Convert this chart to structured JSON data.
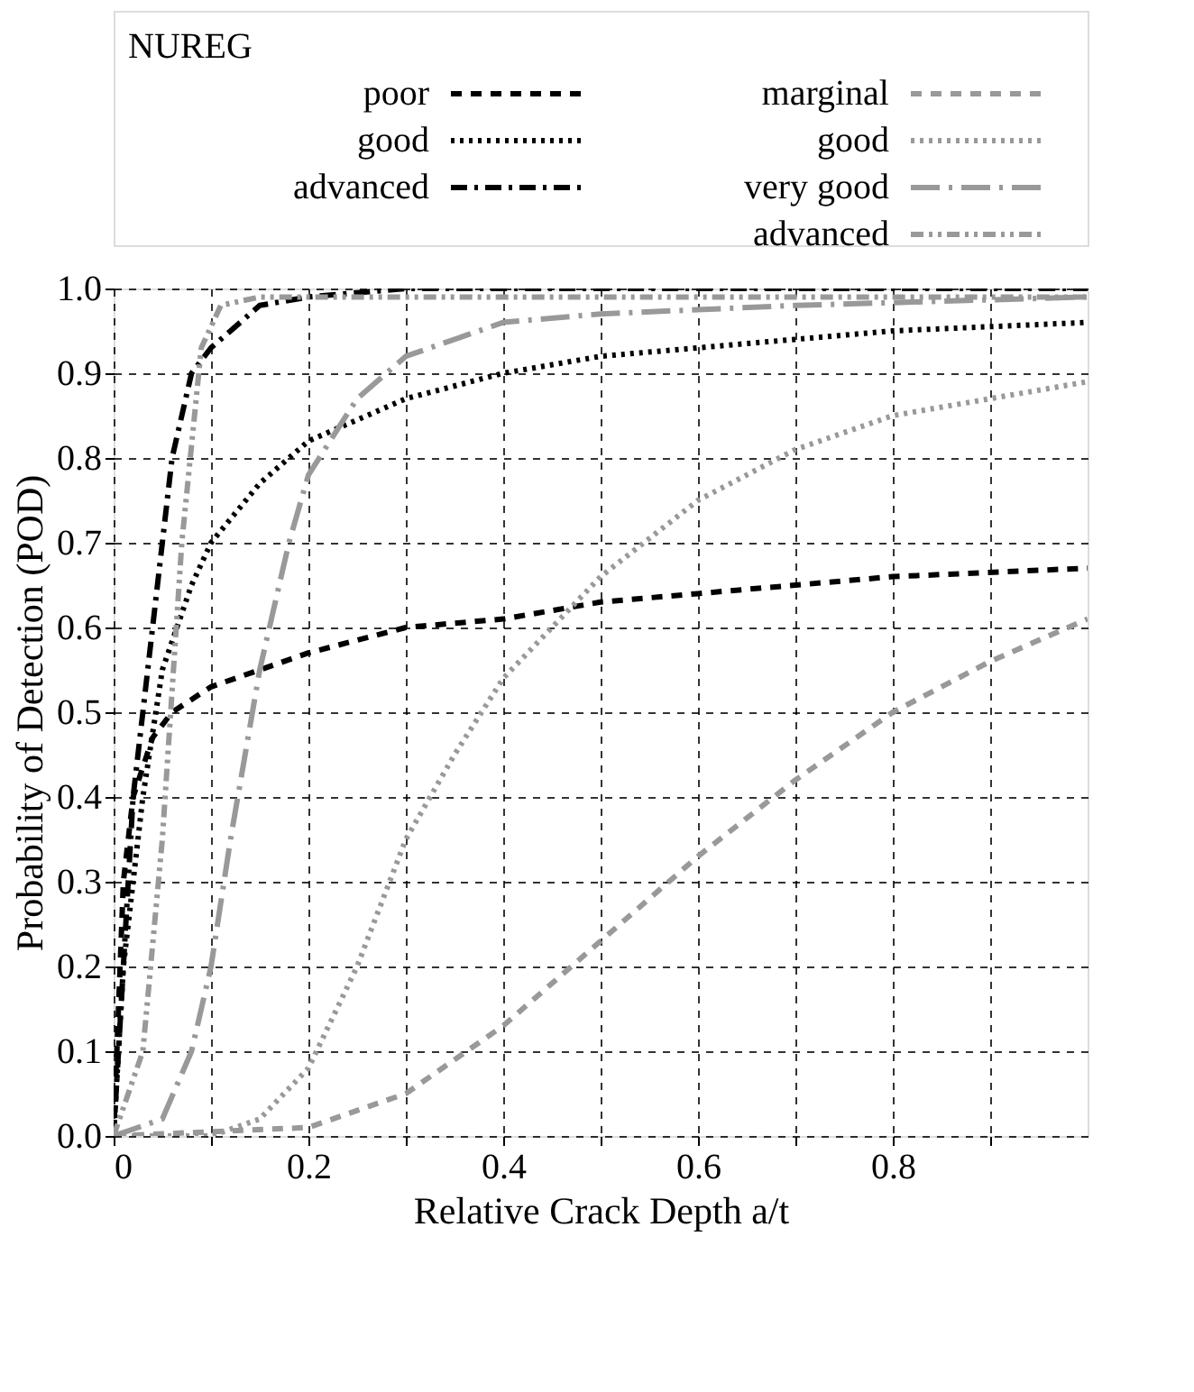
{
  "chart_data": {
    "type": "line",
    "xlabel": "Relative Crack Depth a/t",
    "ylabel": "Probability of Detection (POD)",
    "legend_title": "NUREG",
    "xlim": [
      0,
      1
    ],
    "ylim": [
      0,
      1
    ],
    "xticks": [
      0,
      {
        "value": 0.1,
        "label": null
      },
      0.2,
      {
        "value": 0.3,
        "label": null
      },
      0.4,
      {
        "value": 0.5,
        "label": null
      },
      0.6,
      {
        "value": 0.7,
        "label": null
      },
      0.8,
      {
        "value": 0.9,
        "label": null
      }
    ],
    "yticks": [
      {
        "value": 0,
        "label": "0.0"
      },
      0.1,
      0.2,
      0.3,
      0.4,
      0.5,
      0.6,
      0.7,
      0.8,
      0.9,
      {
        "value": 1,
        "label": "1.0"
      }
    ],
    "grid": true,
    "legend": "top",
    "marker": "none",
    "series": [
      {
        "name": "poor",
        "color": "#000000",
        "line_style": "dashed",
        "x": [
          0,
          0.01,
          0.02,
          0.04,
          0.06,
          0.1,
          0.2,
          0.3,
          0.4,
          0.5,
          0.6,
          0.7,
          0.8,
          1.0
        ],
        "values": [
          0,
          0.3,
          0.4,
          0.47,
          0.5,
          0.53,
          0.57,
          0.6,
          0.61,
          0.63,
          0.64,
          0.65,
          0.66,
          0.67
        ]
      },
      {
        "name": "good",
        "color": "#000000",
        "line_style": "dotted",
        "x": [
          0,
          0.01,
          0.03,
          0.05,
          0.08,
          0.1,
          0.15,
          0.2,
          0.3,
          0.4,
          0.5,
          0.6,
          0.8,
          1.0
        ],
        "values": [
          0,
          0.2,
          0.4,
          0.55,
          0.65,
          0.7,
          0.77,
          0.82,
          0.87,
          0.9,
          0.92,
          0.93,
          0.95,
          0.96
        ]
      },
      {
        "name": "advanced",
        "color": "#000000",
        "line_style": "dashdot",
        "x": [
          0,
          0.02,
          0.04,
          0.06,
          0.08,
          0.1,
          0.15,
          0.2,
          0.3,
          1.0
        ],
        "values": [
          0,
          0.4,
          0.6,
          0.8,
          0.9,
          0.93,
          0.98,
          0.99,
          1.0,
          1.0
        ]
      },
      {
        "name": "marginal",
        "color": "#999999",
        "line_style": "dashed",
        "x": [
          0,
          0.2,
          0.3,
          0.4,
          0.5,
          0.6,
          0.7,
          0.8,
          0.9,
          1.0
        ],
        "values": [
          0,
          0.01,
          0.05,
          0.13,
          0.23,
          0.33,
          0.42,
          0.5,
          0.56,
          0.61
        ]
      },
      {
        "name": "good",
        "color": "#999999",
        "line_style": "dotted",
        "x": [
          0,
          0.1,
          0.15,
          0.2,
          0.25,
          0.3,
          0.35,
          0.4,
          0.45,
          0.5,
          0.6,
          0.7,
          0.8,
          0.9,
          1.0
        ],
        "values": [
          0,
          0,
          0.02,
          0.08,
          0.2,
          0.35,
          0.45,
          0.54,
          0.6,
          0.66,
          0.75,
          0.81,
          0.85,
          0.87,
          0.89
        ]
      },
      {
        "name": "very good",
        "color": "#999999",
        "line_style": "longdashdot",
        "x": [
          0,
          0.05,
          0.08,
          0.1,
          0.12,
          0.15,
          0.18,
          0.2,
          0.25,
          0.3,
          0.4,
          0.5,
          0.7,
          1.0
        ],
        "values": [
          0,
          0.02,
          0.1,
          0.2,
          0.35,
          0.55,
          0.7,
          0.78,
          0.87,
          0.92,
          0.96,
          0.97,
          0.98,
          0.99
        ]
      },
      {
        "name": "advanced",
        "color": "#999999",
        "line_style": "dashdotdot",
        "x": [
          0,
          0.03,
          0.05,
          0.07,
          0.09,
          0.11,
          0.15,
          0.3,
          1.0
        ],
        "values": [
          0,
          0.1,
          0.35,
          0.7,
          0.93,
          0.98,
          0.99,
          0.99,
          0.99
        ]
      }
    ]
  }
}
